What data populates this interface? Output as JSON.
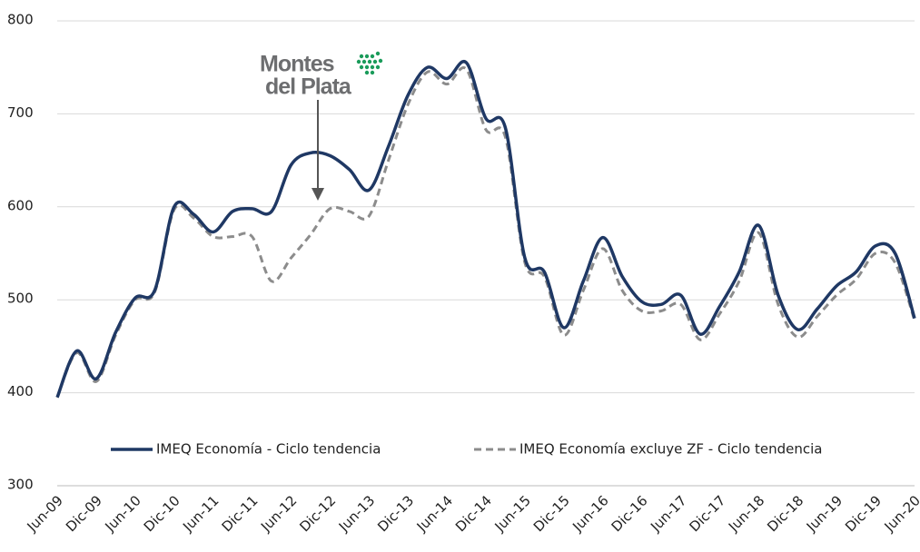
{
  "chart_data": {
    "type": "line",
    "categories": [
      "Jun-09",
      null,
      "Dic-09",
      null,
      "Jun-10",
      null,
      "Dic-10",
      null,
      "Jun-11",
      null,
      "Dic-11",
      null,
      "Jun-12",
      null,
      "Dic-12",
      null,
      "Jun-13",
      null,
      "Dic-13",
      null,
      "Jun-14",
      null,
      "Dic-14",
      null,
      "Jun-15",
      null,
      "Dic-15",
      null,
      "Jun-16",
      null,
      "Dic-16",
      null,
      "Jun-17",
      null,
      "Dic-17",
      null,
      "Jun-18",
      null,
      "Dic-18",
      null,
      "Jun-19",
      null,
      "Dic-19",
      null,
      "Jun-20"
    ],
    "series": [
      {
        "name": "IMEQ Economía - Ciclo tendencia",
        "color": "#1f3864",
        "dash": false,
        "values": [
          395,
          445,
          415,
          465,
          502,
          510,
          600,
          592,
          573,
          595,
          598,
          595,
          645,
          658,
          655,
          640,
          618,
          665,
          720,
          750,
          738,
          755,
          695,
          685,
          545,
          530,
          470,
          520,
          567,
          525,
          498,
          495,
          505,
          463,
          493,
          530,
          580,
          505,
          468,
          490,
          515,
          530,
          558,
          550,
          480
        ]
      },
      {
        "name": "IMEQ Economía excluye ZF - Ciclo tendencia",
        "color": "#8c8c8c",
        "dash": true,
        "values": [
          395,
          443,
          412,
          462,
          500,
          508,
          597,
          588,
          568,
          568,
          568,
          520,
          545,
          570,
          598,
          595,
          590,
          650,
          710,
          745,
          732,
          748,
          683,
          675,
          540,
          525,
          462,
          510,
          555,
          510,
          488,
          488,
          495,
          457,
          485,
          520,
          572,
          495,
          460,
          482,
          505,
          522,
          550,
          540,
          478
        ]
      }
    ],
    "annotation": [
      "Montes",
      "del Plata"
    ],
    "ylim": [
      300,
      800
    ],
    "yticks": [
      300,
      400,
      500,
      600,
      700,
      800
    ],
    "grid": true,
    "legend": "bottom"
  }
}
